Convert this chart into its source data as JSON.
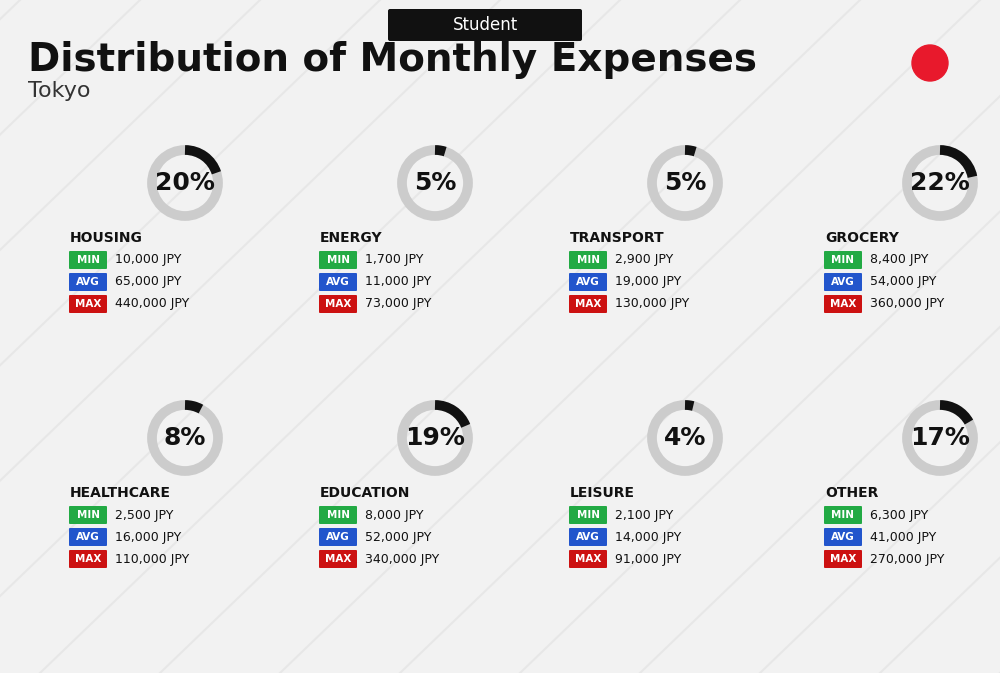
{
  "title": "Distribution of Monthly Expenses",
  "subtitle": "Tokyo",
  "tag": "Student",
  "bg_color": "#f2f2f2",
  "title_color": "#111111",
  "subtitle_color": "#333333",
  "tag_bg": "#111111",
  "tag_fg": "#ffffff",
  "red_dot_color": "#e8192c",
  "categories": [
    {
      "name": "HOUSING",
      "pct": 20,
      "min": "10,000 JPY",
      "avg": "65,000 JPY",
      "max": "440,000 JPY",
      "row": 0,
      "col": 0
    },
    {
      "name": "ENERGY",
      "pct": 5,
      "min": "1,700 JPY",
      "avg": "11,000 JPY",
      "max": "73,000 JPY",
      "row": 0,
      "col": 1
    },
    {
      "name": "TRANSPORT",
      "pct": 5,
      "min": "2,900 JPY",
      "avg": "19,000 JPY",
      "max": "130,000 JPY",
      "row": 0,
      "col": 2
    },
    {
      "name": "GROCERY",
      "pct": 22,
      "min": "8,400 JPY",
      "avg": "54,000 JPY",
      "max": "360,000 JPY",
      "row": 0,
      "col": 3
    },
    {
      "name": "HEALTHCARE",
      "pct": 8,
      "min": "2,500 JPY",
      "avg": "16,000 JPY",
      "max": "110,000 JPY",
      "row": 1,
      "col": 0
    },
    {
      "name": "EDUCATION",
      "pct": 19,
      "min": "8,000 JPY",
      "avg": "52,000 JPY",
      "max": "340,000 JPY",
      "row": 1,
      "col": 1
    },
    {
      "name": "LEISURE",
      "pct": 4,
      "min": "2,100 JPY",
      "avg": "14,000 JPY",
      "max": "91,000 JPY",
      "row": 1,
      "col": 2
    },
    {
      "name": "OTHER",
      "pct": 17,
      "min": "6,300 JPY",
      "avg": "41,000 JPY",
      "max": "270,000 JPY",
      "row": 1,
      "col": 3
    }
  ],
  "min_color": "#22aa44",
  "avg_color": "#2255cc",
  "max_color": "#cc1111",
  "label_fg": "#ffffff",
  "ring_bg": "#cccccc",
  "ring_fg": "#111111",
  "ring_pct_fontsize": 18,
  "cat_fontsize": 11,
  "val_fontsize": 10
}
